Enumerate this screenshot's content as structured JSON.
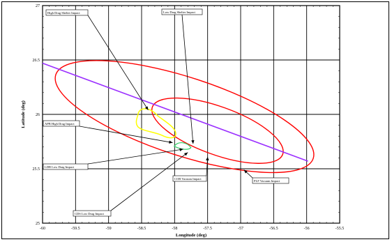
{
  "chart_data": {
    "type": "line",
    "xlabel": "Longitude (deg)",
    "ylabel": "Latitude (deg)",
    "xlim": [
      -60,
      -55.5
    ],
    "ylim": [
      25,
      27
    ],
    "x_ticks": [
      "-60",
      "-59.5",
      "-59",
      "-58.5",
      "-58",
      "-57.5",
      "-57",
      "-56.5",
      "-56",
      "-55.5"
    ],
    "y_ticks": [
      "25",
      "25.5",
      "26",
      "26.5",
      "27"
    ],
    "grid": true,
    "colors": {
      "ground_track": "#9b30ff",
      "outer_ellipse": "#ff0000",
      "inner_ellipse": "#ff0000",
      "high_drag_region": "#ffff00",
      "small_region": "#33cc66",
      "axes": "#000000"
    },
    "series": [
      {
        "points": [
          [
            -60,
            26.47
          ],
          [
            -55.98,
            25.57
          ]
        ]
      }
    ],
    "regions": [
      {
        "label": "",
        "cx": -57.85,
        "cy": 25.98,
        "rx": 2.05,
        "ry": 0.36,
        "angle_deg": 18
      },
      {
        "label": "",
        "cx": -57.35,
        "cy": 25.85,
        "rx": 1.05,
        "ry": 0.22,
        "angle_deg": 20
      },
      {
        "label": "",
        "cx": -58.45,
        "cy": 25.95,
        "type": "high-drag footprint"
      }
    ],
    "annotations": [
      {
        "text": "High Drag Shelter Impact",
        "point": [
          -58.4,
          26.04
        ]
      },
      {
        "text": "Low Drag Shelter Impact",
        "point": [
          -57.72,
          25.73
        ]
      },
      {
        "text": "APB High Drag Impact",
        "point": [
          -58.03,
          25.74
        ]
      },
      {
        "text": "LDB Low Drag Impact",
        "point": [
          -57.87,
          25.68
        ]
      },
      {
        "text": "COB Vacuum Impact",
        "point": [
          -57.5,
          25.61
        ]
      },
      {
        "text": "PLF Vacuum Impact",
        "point": [
          -56.95,
          25.49
        ]
      },
      {
        "text": "CDS Low Drag Impact",
        "point": [
          -57.8,
          25.65
        ]
      }
    ]
  }
}
